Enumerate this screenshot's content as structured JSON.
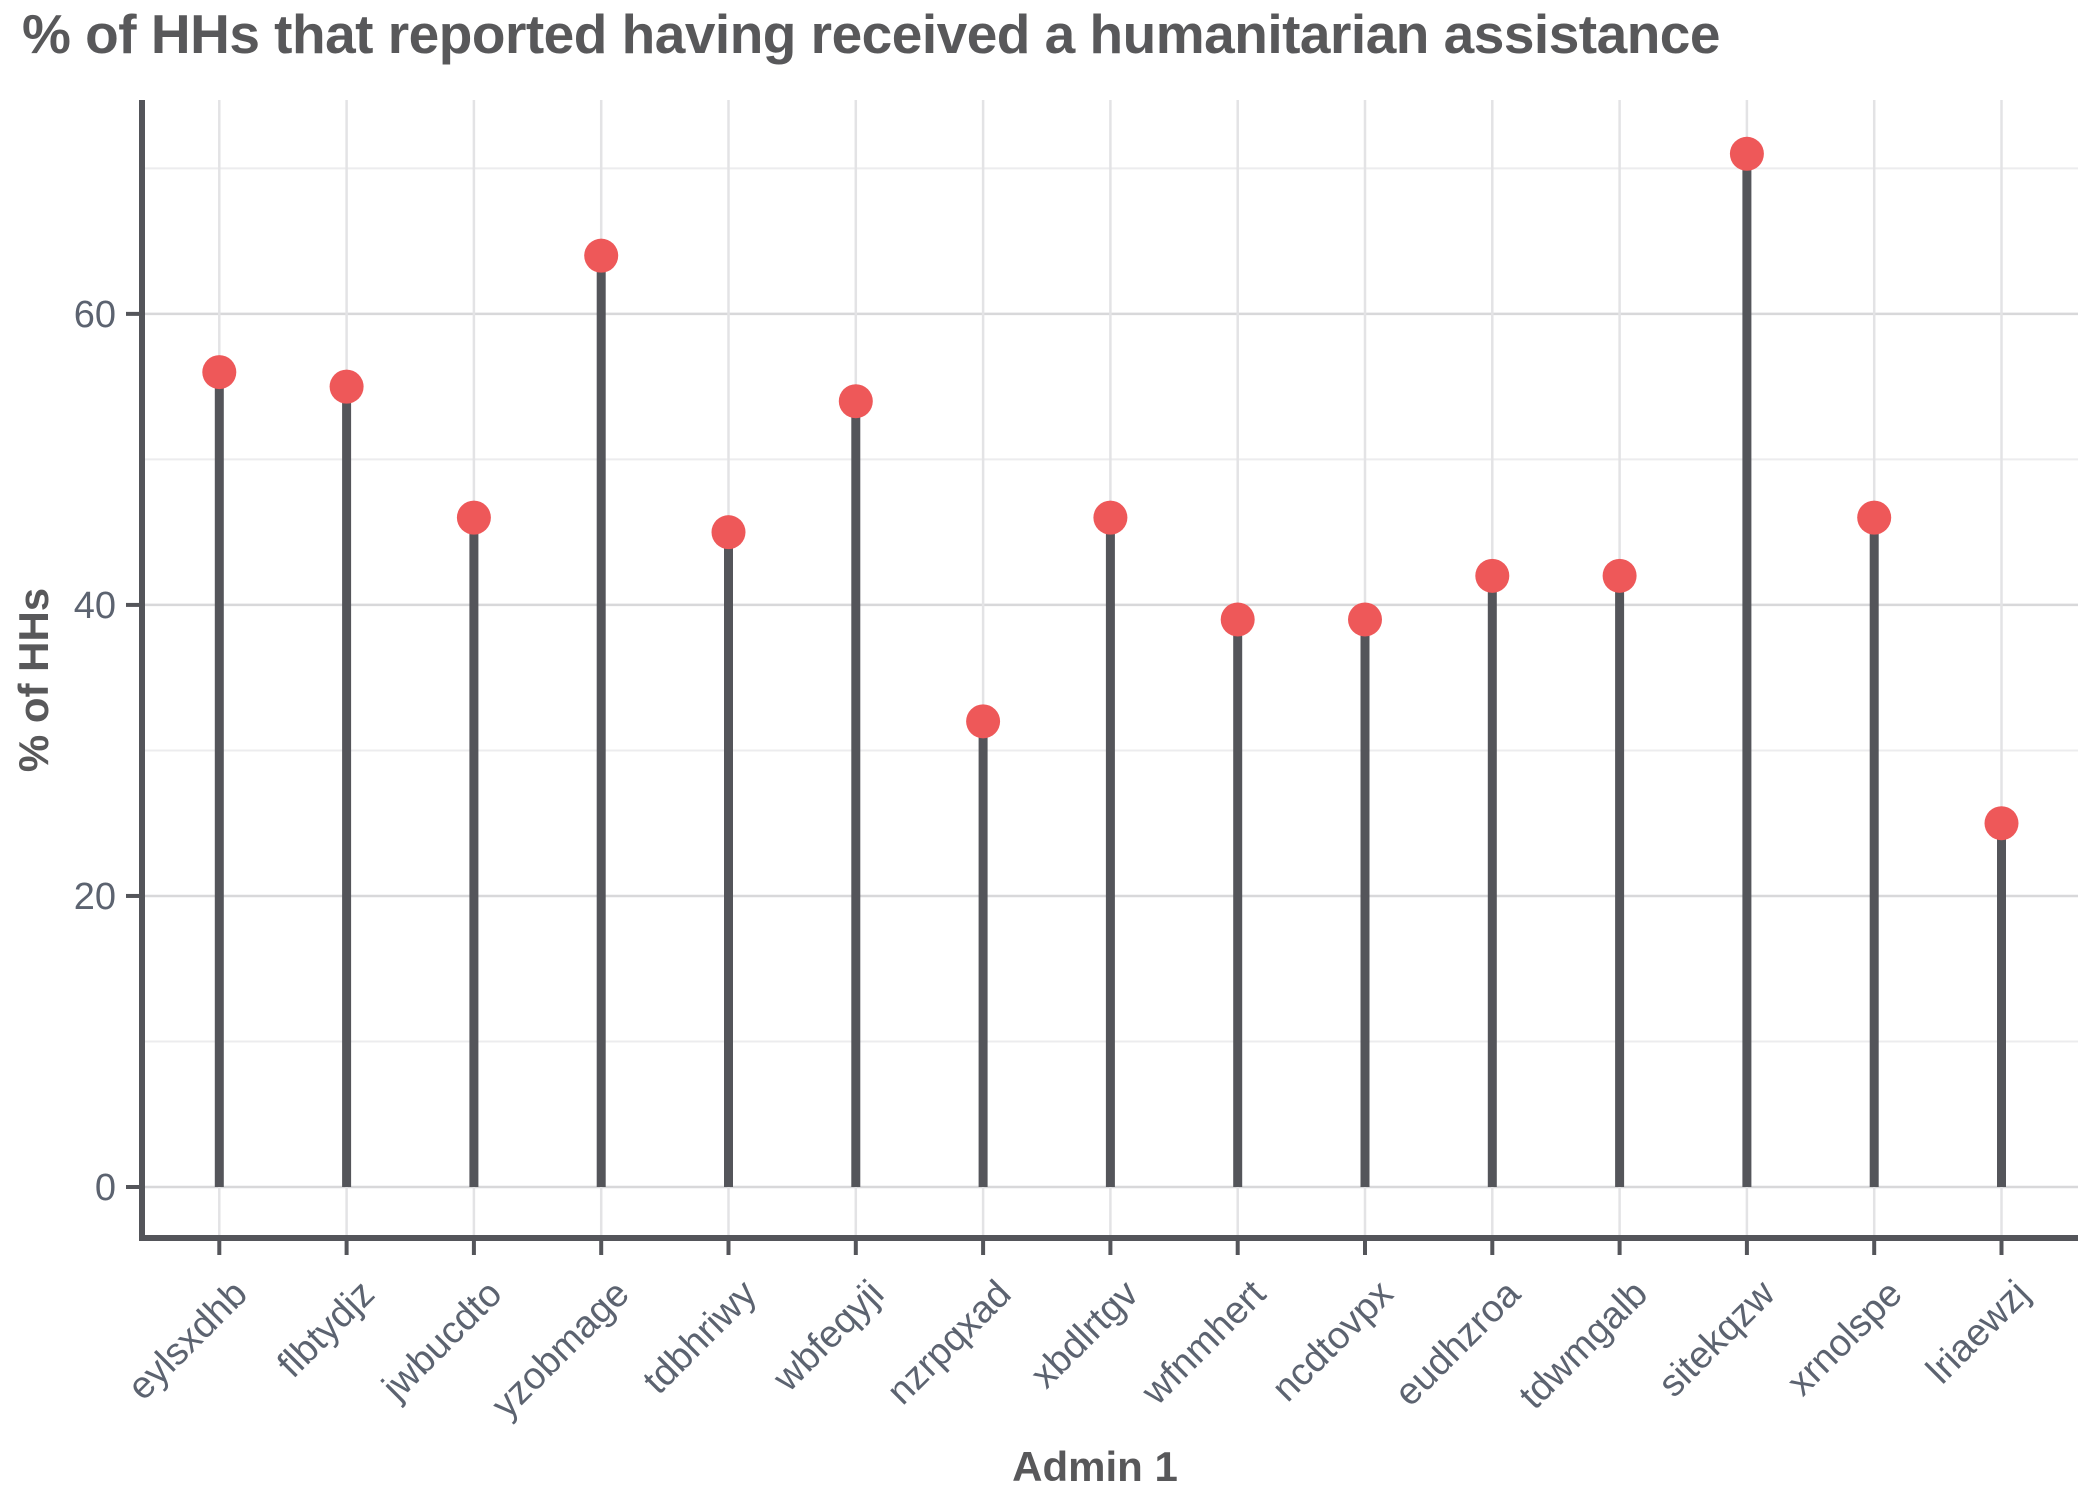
{
  "title": "% of HHs that reported having received a humanitarian assistance",
  "axes": {
    "x_label": "Admin 1",
    "y_label": "% of HHs",
    "y_ticks": [
      0,
      20,
      40,
      60
    ]
  },
  "colors": {
    "point": "#EE5859",
    "stem": "#54555A",
    "axis_line": "#54555A",
    "title_text": "#58585A",
    "tick_text": "#5C6370",
    "grid_major": "#D8D8DA",
    "grid_minor": "#ECECEE",
    "grid_vertical": "#E3E3E5",
    "background": "#FFFFFF"
  },
  "chart_data": {
    "type": "bar",
    "variant": "lollipop",
    "title": "% of HHs that reported having received a humanitarian assistance",
    "xlabel": "Admin 1",
    "ylabel": "% of HHs",
    "categories": [
      "eylsxdhb",
      "flbtydjz",
      "jwbucdto",
      "yzobmage",
      "tdbhriwy",
      "wbfeqyji",
      "nzrpqxad",
      "xbdlrtgv",
      "wfnmhert",
      "ncdtovpx",
      "eudhzroa",
      "tdwmgalb",
      "sitekqzw",
      "xrnolspe",
      "lriaewzj"
    ],
    "values": [
      56,
      55,
      46,
      64,
      45,
      54,
      32,
      46,
      39,
      39,
      42,
      42,
      71,
      46,
      25
    ],
    "ylim": [
      -4,
      74.7
    ],
    "yticks_major": [
      0,
      20,
      40,
      60
    ],
    "yticks_minor": [
      10,
      30,
      50,
      70
    ],
    "grid": "horizontal major+minor, vertical per category",
    "legend": "none",
    "x_tick_label_angle_deg": 45
  }
}
